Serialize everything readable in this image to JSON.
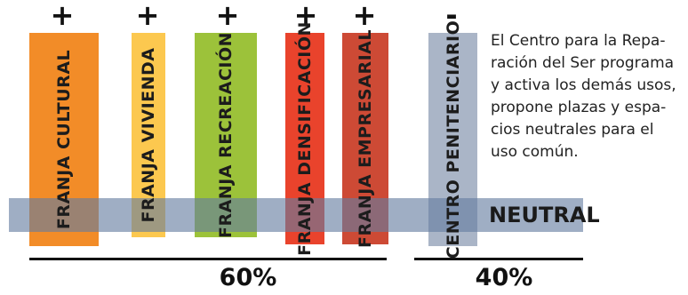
{
  "bands": [
    {
      "sign": "+",
      "label": "FRANJA CULTURAL",
      "color": "#f28c28"
    },
    {
      "sign": "+",
      "label": "FRANJA VIVIENDA",
      "color": "#fcc84f"
    },
    {
      "sign": "+",
      "label": "FRANJA RECREACIÓN",
      "color": "#9cc23a"
    },
    {
      "sign": "+",
      "label": "FRANJA DENSIFICACIÓN",
      "color": "#e9432c"
    },
    {
      "sign": "+",
      "label": "FRANJA EMPRESARIAL",
      "color": "#cd4a35"
    },
    {
      "sign": "-",
      "label": "CENTRO PENITENCIARIO",
      "color": "#aab5c7"
    }
  ],
  "neutral": {
    "label": "NEUTRAL",
    "color": "#647da0"
  },
  "description": {
    "lines": [
      "El Centro para la Repa-",
      "ración del Ser programa",
      "y activa los demás usos,",
      "propone plazas y espa-",
      "cios neutrales para el",
      "uso común."
    ]
  },
  "totals": {
    "left": "60%",
    "right": "40%"
  }
}
